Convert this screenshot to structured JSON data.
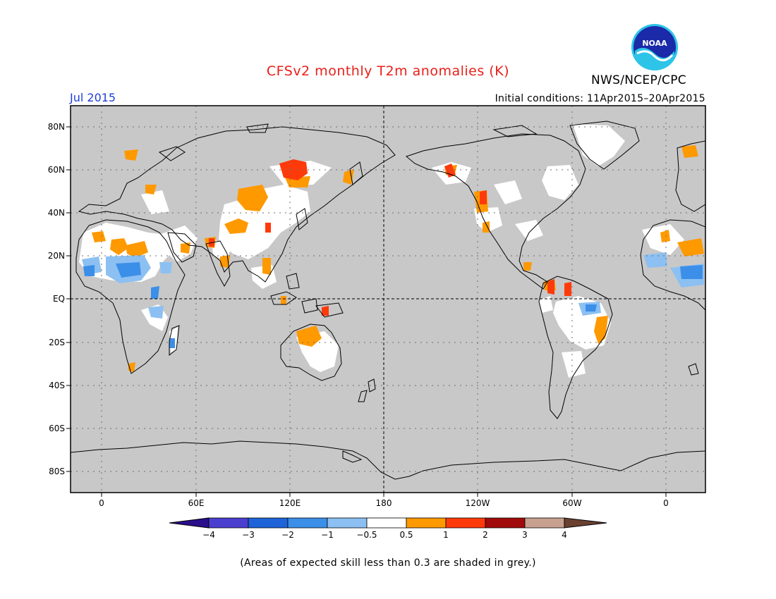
{
  "title": "CFSv2 monthly T2m anomalies (K)",
  "organization": "NWS/NCEP/CPC",
  "logo_text": "NOAA",
  "valid_month": "Jul 2015",
  "initial_conditions": "Initial conditions: 11Apr2015–20Apr2015",
  "footnote": "(Areas of expected skill less than 0.3 are shaded in grey.)",
  "colors": {
    "ocean_grey": "#c8c8c8",
    "title_red": "#e8201a",
    "month_blue": "#1f3fd8"
  },
  "map": {
    "lat_ticks": [
      "80N",
      "60N",
      "40N",
      "20N",
      "EQ",
      "20S",
      "40S",
      "60S",
      "80S"
    ],
    "lon_ticks": [
      "0",
      "60E",
      "120E",
      "180",
      "120W",
      "60W",
      "0"
    ]
  },
  "colorbar": {
    "labels": [
      "−4",
      "−3",
      "−2",
      "−1",
      "−0.5",
      "0.5",
      "1",
      "2",
      "3",
      "4"
    ],
    "colors": [
      "#2a0f8c",
      "#4b3fcf",
      "#1e64d8",
      "#3c8fe8",
      "#8cc0f2",
      "#ffffff",
      "#ff9900",
      "#ff3a0a",
      "#a00a0a",
      "#c8a090",
      "#6a4030"
    ]
  }
}
